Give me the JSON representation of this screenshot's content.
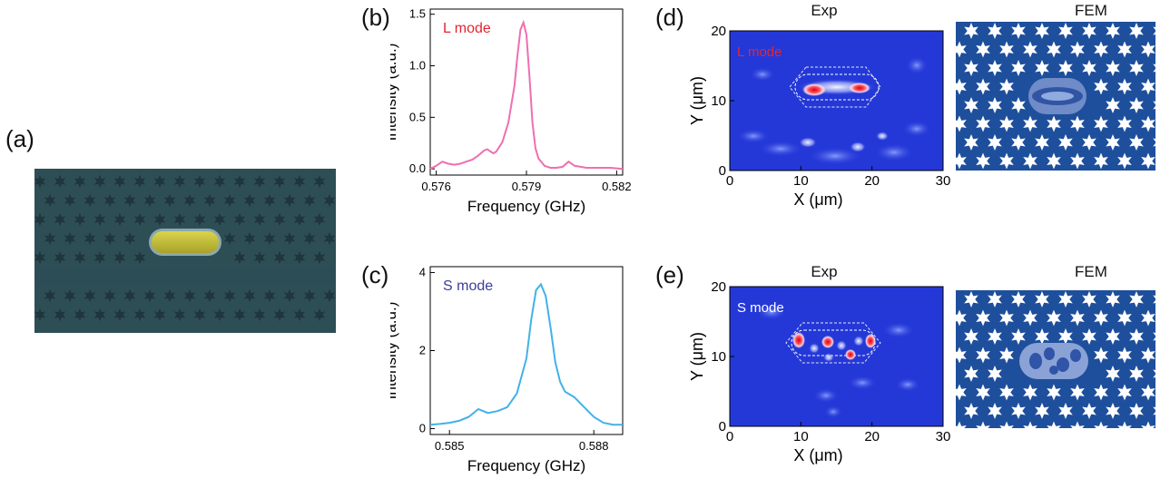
{
  "panels": {
    "a": "(a)",
    "b": "(b)",
    "c": "(c)",
    "d": "(d)",
    "e": "(e)"
  },
  "colors": {
    "sem_bg": "#2e4e56",
    "sem_hole": "#1f363d",
    "sem_cavity": "#c8c23a",
    "spectrum_L": "#ee6fb0",
    "spectrum_S": "#41b2e8",
    "map_bg": "#2438d8",
    "fem_bg": "#1e4f9c",
    "label_L": "#e3262f",
    "label_S": "#ffffff"
  },
  "maps": {
    "d": {
      "exp_title": "Exp",
      "fem_title": "FEM",
      "mode_label": "L mode",
      "ylabel": "Y (μm)",
      "xlabel": "X (μm)",
      "xticks": [
        "0",
        "10",
        "20",
        "30"
      ],
      "yticks": [
        "0",
        "10",
        "20"
      ]
    },
    "e": {
      "exp_title": "Exp",
      "fem_title": "FEM",
      "mode_label": "S mode",
      "ylabel": "Y (μm)",
      "xlabel": "X (μm)",
      "xticks": [
        "0",
        "10",
        "20",
        "30"
      ],
      "yticks": [
        "0",
        "10",
        "20"
      ]
    }
  },
  "chart_data": [
    {
      "type": "line",
      "panel": "b",
      "annotation": "L mode",
      "xlabel": "Frequency (GHz)",
      "ylabel": "Intensity (a.u.)",
      "xlim": [
        0.5758,
        0.5822
      ],
      "ylim": [
        -0.06,
        1.55
      ],
      "xticks": [
        0.576,
        0.579,
        0.582
      ],
      "xtick_labels": [
        "0.576",
        "0.579",
        "0.582"
      ],
      "yticks": [
        0,
        0.5,
        1.0,
        1.5
      ],
      "ytick_labels": [
        "0.0",
        "0.5",
        "1.0",
        "1.5"
      ],
      "series": [
        {
          "x": [
            0.5758,
            0.576,
            0.5762,
            0.5764,
            0.5766,
            0.5768,
            0.577,
            0.5772,
            0.5774,
            0.5776,
            0.5777,
            0.5778,
            0.5779,
            0.578,
            0.5782,
            0.5784,
            0.5786,
            0.5787,
            0.5788,
            0.5789,
            0.579,
            0.5791,
            0.5792,
            0.5793,
            0.5794,
            0.5796,
            0.5798,
            0.58,
            0.5802,
            0.5804,
            0.5806,
            0.5808,
            0.581,
            0.5814,
            0.5818,
            0.5822
          ],
          "y": [
            0.0,
            0.03,
            0.07,
            0.05,
            0.04,
            0.05,
            0.07,
            0.09,
            0.13,
            0.18,
            0.19,
            0.17,
            0.15,
            0.17,
            0.26,
            0.45,
            0.8,
            1.1,
            1.35,
            1.42,
            1.3,
            0.9,
            0.45,
            0.2,
            0.1,
            0.03,
            0.01,
            0.01,
            0.02,
            0.07,
            0.03,
            0.02,
            0.01,
            0.01,
            0.01,
            0.0
          ]
        }
      ]
    },
    {
      "type": "line",
      "panel": "c",
      "annotation": "S mode",
      "xlabel": "Frequency (GHz)",
      "ylabel": "Intensity (a.u.)",
      "xlim": [
        0.5846,
        0.5886
      ],
      "ylim": [
        -0.15,
        4.15
      ],
      "xticks": [
        0.585,
        0.588
      ],
      "xtick_labels": [
        "0.585",
        "0.588"
      ],
      "yticks": [
        0,
        2,
        4
      ],
      "ytick_labels": [
        "0",
        "2",
        "4"
      ],
      "series": [
        {
          "x": [
            0.5846,
            0.5848,
            0.585,
            0.5852,
            0.5854,
            0.5856,
            0.5857,
            0.5858,
            0.586,
            0.5862,
            0.5864,
            0.5866,
            0.5867,
            0.5868,
            0.5869,
            0.587,
            0.5871,
            0.5872,
            0.5873,
            0.5874,
            0.5876,
            0.5878,
            0.588,
            0.5882,
            0.5884,
            0.5886
          ],
          "y": [
            0.1,
            0.12,
            0.15,
            0.2,
            0.3,
            0.5,
            0.45,
            0.4,
            0.45,
            0.55,
            0.9,
            1.8,
            2.8,
            3.55,
            3.7,
            3.4,
            2.6,
            1.7,
            1.2,
            0.95,
            0.8,
            0.55,
            0.3,
            0.15,
            0.1,
            0.1
          ]
        }
      ]
    }
  ]
}
